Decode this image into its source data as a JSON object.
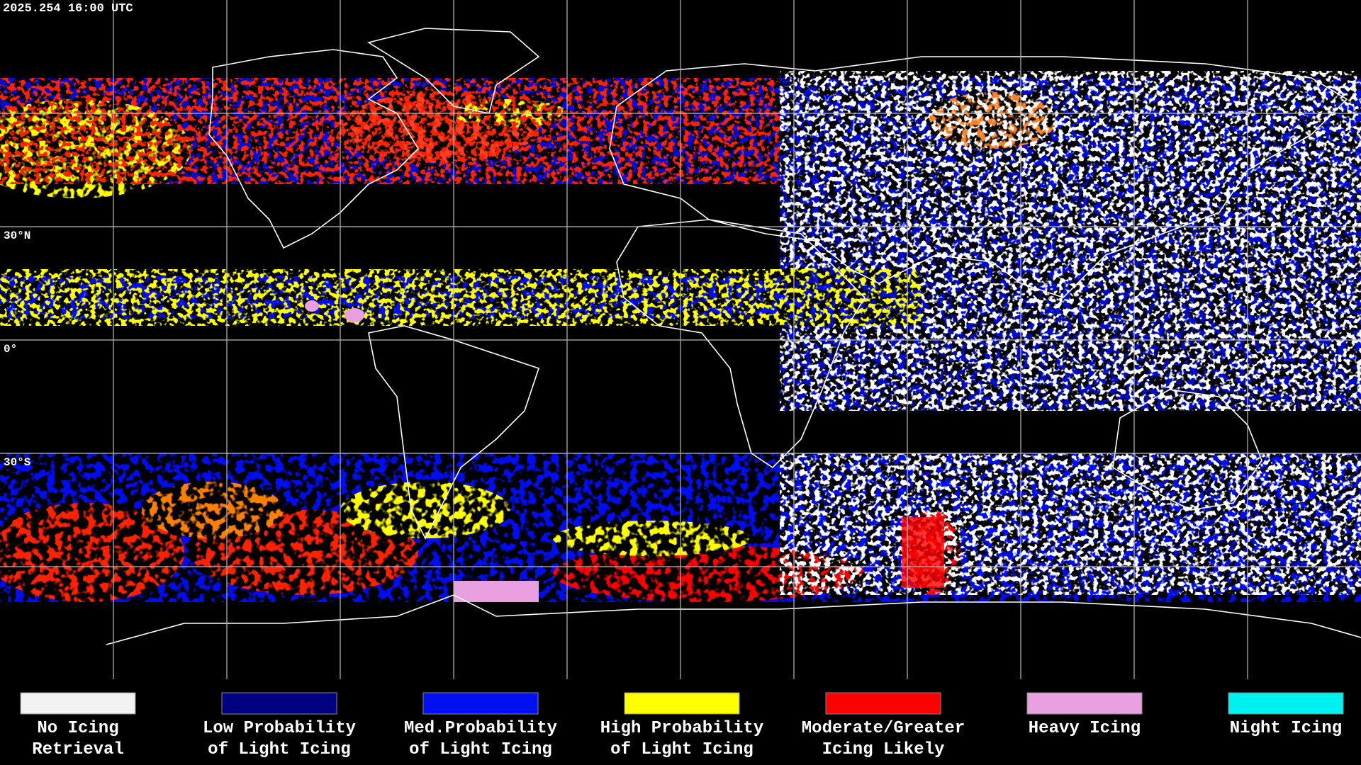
{
  "header": {
    "timestamp": "2025.254 16:00 UTC"
  },
  "latitude_labels": [
    "30°N",
    "0°",
    "30°S"
  ],
  "legend": {
    "items": [
      {
        "lines": [
          "No Icing",
          "Retrieval"
        ],
        "color": "#f2f2f2"
      },
      {
        "lines": [
          "Low Probability",
          "of Light Icing"
        ],
        "color": "#000080"
      },
      {
        "lines": [
          "Med.Probability",
          "of Light Icing"
        ],
        "color": "#0010f0"
      },
      {
        "lines": [
          "High Probability",
          "of Light Icing"
        ],
        "color": "#ffff00"
      },
      {
        "lines": [
          "Moderate/Greater",
          "Icing Likely"
        ],
        "color": "#ff0000"
      },
      {
        "lines": [
          "Heavy Icing"
        ],
        "color": "#e8a0e0"
      },
      {
        "lines": [
          "Night Icing"
        ],
        "color": "#00f0f0"
      }
    ]
  }
}
